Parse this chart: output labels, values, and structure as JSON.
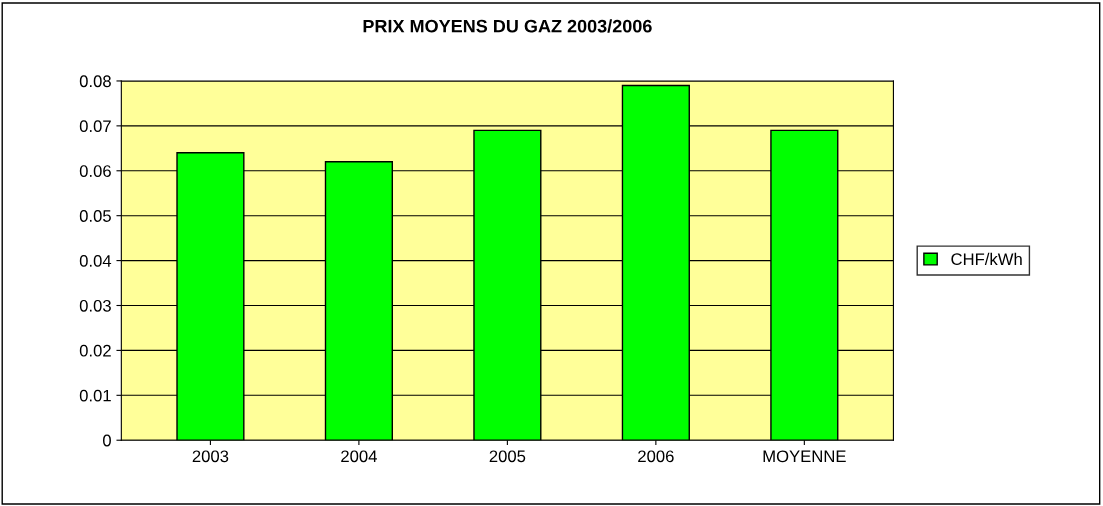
{
  "chart_data": {
    "type": "bar",
    "title": "PRIX MOYENS DU GAZ 2003/2006",
    "categories": [
      "2003",
      "2004",
      "2005",
      "2006",
      "MOYENNE"
    ],
    "series": [
      {
        "name": "CHF/kWh",
        "color": "#00ff00",
        "values": [
          0.064,
          0.062,
          0.069,
          0.079,
          0.069
        ]
      }
    ],
    "ylim": [
      0,
      0.08
    ],
    "yticks": [
      {
        "value": 0,
        "label": "0"
      },
      0.01,
      0.02,
      0.03,
      0.04,
      0.05,
      0.06,
      0.07,
      0.08
    ],
    "grid": "y",
    "legend": "right"
  }
}
